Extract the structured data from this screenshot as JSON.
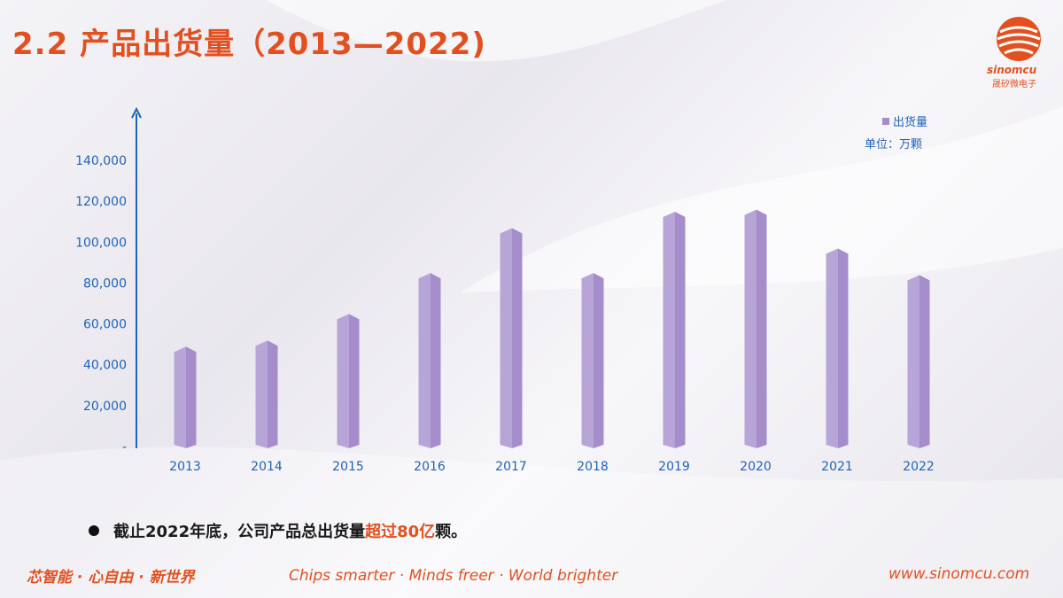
{
  "slide": {
    "title": "2.2 产品出货量（2013—2022)",
    "logo_text": "sinomcu",
    "logo_cn": "晟矽微电子",
    "unit_label": "单位：万颗",
    "note": {
      "prefix": "截止2022年底，公司产品总出货量",
      "highlight": "超过80亿",
      "suffix": "颗。"
    },
    "footer": {
      "slogan_cn": "芯智能 · 心自由 · 新世界",
      "slogan_en": "Chips smarter ·  Minds freer · World brighter",
      "url": "www.sinomcu.com"
    },
    "colors": {
      "accent": "#e2501f",
      "bar": "#a48dca",
      "axis": "#1f63b8"
    }
  },
  "chart_data": {
    "type": "bar",
    "categories": [
      "2013",
      "2014",
      "2015",
      "2016",
      "2017",
      "2018",
      "2019",
      "2020",
      "2021",
      "2022"
    ],
    "series": [
      {
        "name": "出货量",
        "values": [
          48000,
          51000,
          64000,
          84000,
          106000,
          84000,
          114000,
          115000,
          96000,
          83000
        ]
      }
    ],
    "yticks": [
      "-",
      "20,000",
      "40,000",
      "60,000",
      "80,000",
      "100,000",
      "120,000",
      "140,000"
    ],
    "ylim": [
      0,
      140000
    ],
    "ylabel": "",
    "xlabel": "",
    "grid": false,
    "legend_position": "top-right"
  }
}
